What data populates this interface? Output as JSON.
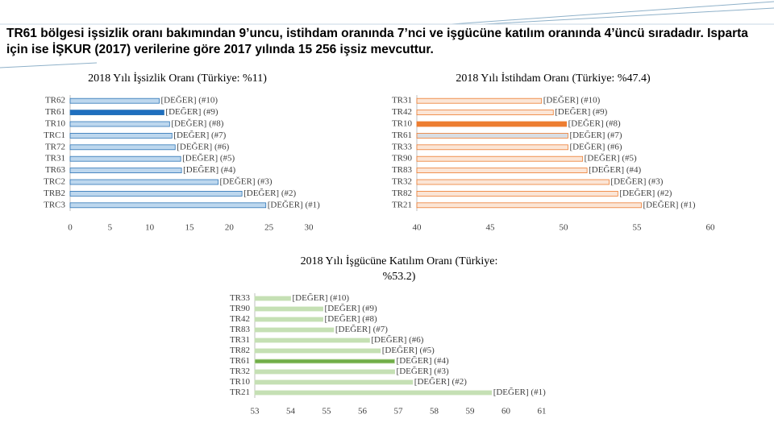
{
  "header": {
    "title": "TR61 bölgesi işsizlik oranı bakımından 9’uncu, istihdam oranında 7’nci ve işgücüne katılım oranında 4’üncü sıradadır. Isparta için ise İŞKUR (2017) verilerine göre 2017 yılında 15 256 işsiz mevcuttur."
  },
  "chart_data": [
    {
      "type": "hbar",
      "title": "2018 Yılı İşsizlik Oranı (Türkiye: %11)",
      "categories": [
        "TR62",
        "TR61",
        "TR10",
        "TRC1",
        "TR72",
        "TR31",
        "TR63",
        "TRC2",
        "TRB2",
        "TRC3"
      ],
      "values": [
        11.2,
        11.8,
        12.5,
        12.8,
        13.2,
        13.9,
        14.0,
        18.6,
        21.6,
        24.6
      ],
      "value_labels": [
        "[DEĞER] (#10)",
        "[DEĞER] (#9)",
        "[DEĞER] (#8)",
        "[DEĞER] (#7)",
        "[DEĞER] (#6)",
        "[DEĞER] (#5)",
        "[DEĞER] (#4)",
        "[DEĞER] (#3)",
        "[DEĞER] (#2)",
        "[DEĞER] (#1)"
      ],
      "colors": [
        "#bdd7ee",
        "#1f6fbf",
        "#bdd7ee",
        "#bdd7ee",
        "#bdd7ee",
        "#bdd7ee",
        "#bdd7ee",
        "#bdd7ee",
        "#bdd7ee",
        "#bdd7ee"
      ],
      "edgecolor": "#2e75b6",
      "xlim": [
        0,
        30
      ],
      "xticks": [
        0,
        5,
        10,
        15,
        20,
        25,
        30
      ],
      "grid": false
    },
    {
      "type": "hbar",
      "title": "2018 Yılı İstihdam Oranı (Türkiye: %47.4)",
      "categories": [
        "TR31",
        "TR42",
        "TR10",
        "TR61",
        "TR33",
        "TR90",
        "TR83",
        "TR32",
        "TR82",
        "TR21"
      ],
      "values": [
        48.5,
        49.3,
        50.2,
        50.3,
        50.3,
        51.3,
        51.6,
        53.1,
        53.7,
        55.3
      ],
      "value_labels": [
        "[DEĞER] (#10)",
        "[DEĞER] (#9)",
        "[DEĞER] (#8)",
        "[DEĞER] (#7)",
        "[DEĞER] (#6)",
        "[DEĞER] (#5)",
        "[DEĞER] (#4)",
        "[DEĞER] (#3)",
        "[DEĞER] (#2)",
        "[DEĞER] (#1)"
      ],
      "colors": [
        "#fbe5d6",
        "#fbe5d6",
        "#ed7d31",
        "#d9dde3",
        "#fbe5d6",
        "#fbe5d6",
        "#fbe5d6",
        "#fbe5d6",
        "#fbe5d6",
        "#fbe5d6"
      ],
      "edgecolor": "#ed7d31",
      "xlim": [
        40,
        60
      ],
      "xticks": [
        40,
        45,
        50,
        55,
        60
      ],
      "grid": false
    },
    {
      "type": "hbar",
      "title": "2018 Yılı İşgücüne Katılım Oranı (Türkiye: %53.2)",
      "categories": [
        "TR33",
        "TR90",
        "TR42",
        "TR83",
        "TR31",
        "TR82",
        "TR61",
        "TR32",
        "TR10",
        "TR21"
      ],
      "values": [
        54.0,
        54.9,
        54.9,
        55.2,
        56.2,
        56.5,
        56.9,
        56.9,
        57.4,
        59.6
      ],
      "value_labels": [
        "[DEĞER] (#10)",
        "[DEĞER] (#9)",
        "[DEĞER] (#8)",
        "[DEĞER] (#7)",
        "[DEĞER] (#6)",
        "[DEĞER] (#5)",
        "[DEĞER] (#4)",
        "[DEĞER] (#3)",
        "[DEĞER] (#2)",
        "[DEĞER] (#1)"
      ],
      "colors": [
        "#c5e0b4",
        "#c5e0b4",
        "#c5e0b4",
        "#c5e0b4",
        "#c5e0b4",
        "#c5e0b4",
        "#70ad47",
        "#c5e0b4",
        "#c5e0b4",
        "#c5e0b4"
      ],
      "edgecolor": "#c5e0b4",
      "xlim": [
        53,
        61
      ],
      "xticks": [
        53,
        54,
        55,
        56,
        57,
        58,
        59,
        60,
        61
      ],
      "grid": false
    }
  ]
}
